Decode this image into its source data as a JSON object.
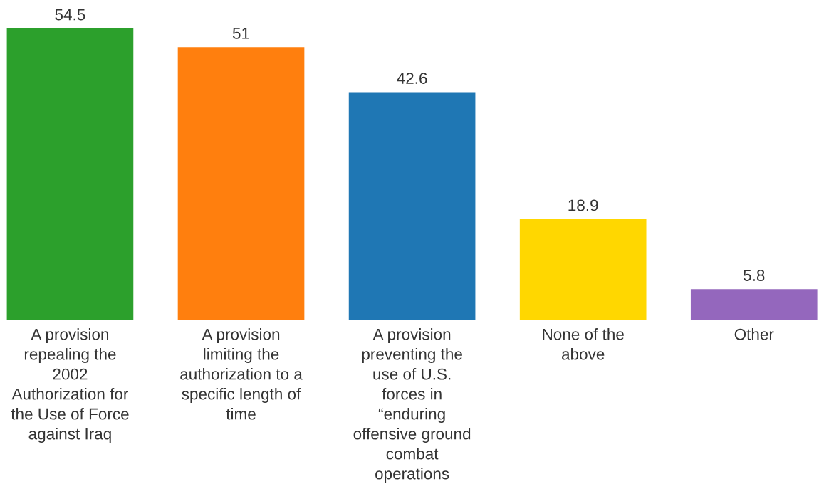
{
  "chart_data": {
    "type": "bar",
    "categories": [
      "A provision repealing the 2002 Authorization for the Use of Force against Iraq",
      "A provision limiting the authorization to a specific length of time",
      "A provision preventing the use of U.S. forces in “enduring offensive ground combat operations",
      "None of the above",
      "Other"
    ],
    "values": [
      54.5,
      51,
      42.6,
      18.9,
      5.8
    ],
    "colors": [
      "#2ca02c",
      "#ff7f0e",
      "#1f77b4",
      "#ffd700",
      "#9467bd"
    ],
    "data_labels": true
  }
}
